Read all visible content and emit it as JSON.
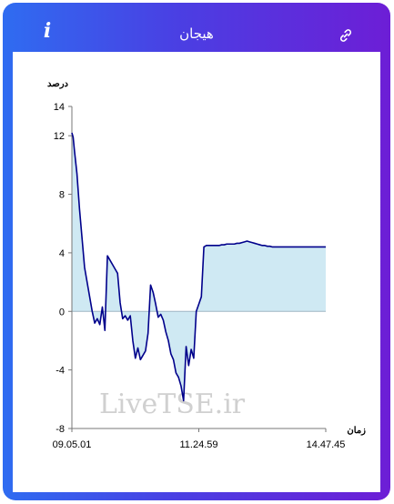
{
  "header": {
    "title": "هیجان",
    "info_icon": "info-icon",
    "link_icon": "link-icon"
  },
  "colors": {
    "line": "#00008b",
    "fill": "#cfe9f3",
    "zero_line": "#9fb6c4"
  },
  "watermark": "LiveTSE.ir",
  "chart_data": {
    "type": "area",
    "ylabel": "درصد",
    "xlabel": "زمان",
    "ylim": [
      -8,
      14
    ],
    "yticks": [
      -8,
      -4,
      0,
      4,
      8,
      12,
      14
    ],
    "x_tick_labels": [
      "09.05.01",
      "11.24.59",
      "14.47.45"
    ],
    "grid": false,
    "series": [
      {
        "x": [
          0,
          0.5,
          1,
          1.5,
          2,
          2.5,
          3,
          4,
          5,
          6,
          7,
          8,
          9,
          10,
          11,
          12,
          13,
          14,
          15,
          16,
          17,
          18,
          19,
          20,
          21,
          22,
          23,
          24,
          25,
          26,
          27,
          28,
          29,
          30,
          31,
          32,
          33,
          34,
          35,
          36,
          37,
          38,
          39,
          40,
          41,
          42,
          43,
          44,
          45,
          46,
          47,
          48,
          49,
          50,
          51,
          52,
          53,
          54,
          55,
          56,
          57,
          58,
          59,
          60,
          61,
          62,
          63,
          64,
          65,
          66,
          67,
          68,
          69,
          70,
          71,
          72,
          73,
          74,
          75,
          76,
          77,
          78,
          79,
          80,
          81,
          82,
          83,
          84,
          85,
          86,
          87,
          88,
          89,
          90,
          91,
          92,
          93,
          94,
          95,
          96,
          97,
          98,
          99,
          100
        ],
        "y": [
          12.2,
          11.9,
          11,
          10.2,
          9.4,
          8.2,
          7,
          5,
          3,
          2,
          1,
          0,
          -0.8,
          -0.5,
          -0.9,
          0.3,
          -1.3,
          3.8,
          3.5,
          3.2,
          2.9,
          2.6,
          0.6,
          -0.5,
          -0.3,
          -0.6,
          -0.3,
          -2,
          -3.2,
          -2.5,
          -3.3,
          -3,
          -2.7,
          -1.5,
          1.8,
          1.3,
          0.5,
          -0.4,
          -0.2,
          -0.6,
          -1.4,
          -2,
          -2.9,
          -3.3,
          -4.2,
          -4.5,
          -5.1,
          -6.1,
          -2.4,
          -3.7,
          -2.6,
          -3.2,
          0,
          0.5,
          1,
          4.4,
          4.5,
          4.5,
          4.5,
          4.5,
          4.5,
          4.5,
          4.55,
          4.55,
          4.6,
          4.6,
          4.6,
          4.6,
          4.65,
          4.65,
          4.7,
          4.75,
          4.8,
          4.75,
          4.7,
          4.65,
          4.6,
          4.55,
          4.5,
          4.5,
          4.45,
          4.45,
          4.4,
          4.4,
          4.4,
          4.4,
          4.4,
          4.4,
          4.4,
          4.4,
          4.4,
          4.4,
          4.4,
          4.4,
          4.4,
          4.4,
          4.4,
          4.4,
          4.4,
          4.4,
          4.4,
          4.4,
          4.4,
          4.4
        ]
      }
    ]
  }
}
